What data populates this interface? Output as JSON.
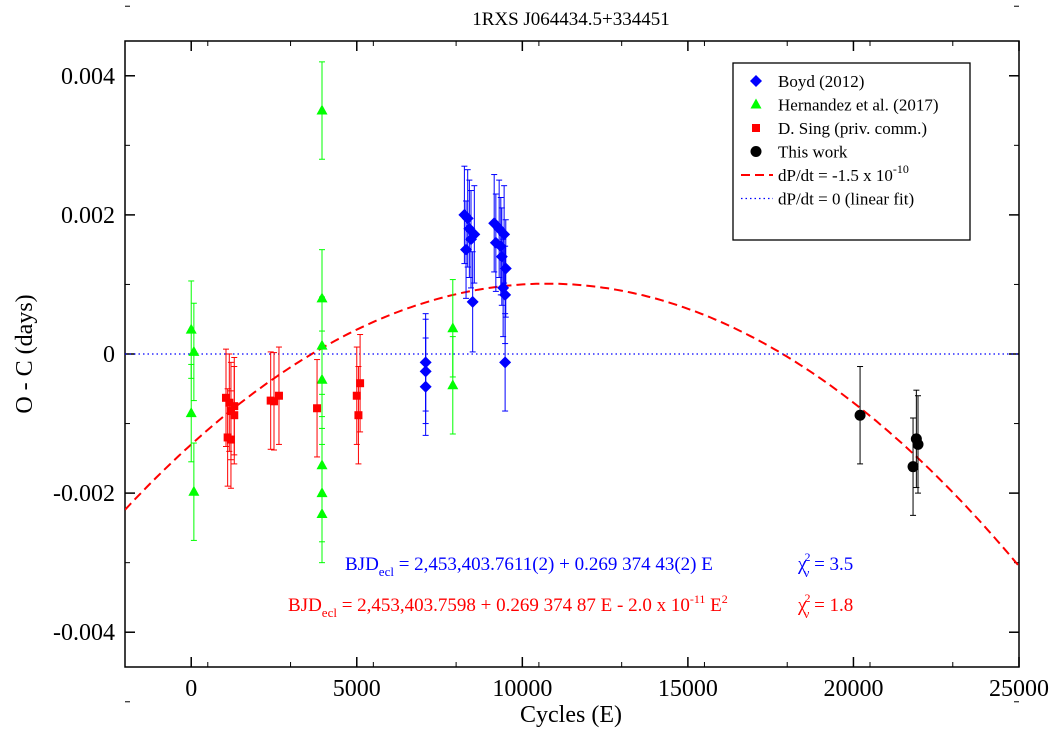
{
  "chart_data": {
    "type": "scatter",
    "title": "1RXS J064434.5+334451",
    "xlabel": "Cycles (E)",
    "ylabel": "O - C (days)",
    "xlim": [
      -2000,
      25000
    ],
    "ylim": [
      -0.0045,
      0.0045
    ],
    "x_ticks": [
      0,
      5000,
      10000,
      15000,
      20000,
      25000
    ],
    "x_tick_labels": [
      "0",
      "5000",
      "10000",
      "15000",
      "20000",
      "25000"
    ],
    "y_ticks": [
      0.004,
      0.002,
      0,
      -0.002,
      -0.004
    ],
    "y_tick_labels": [
      "0.004",
      "0.002",
      "0",
      "-0.002",
      "-0.004"
    ],
    "grid": false,
    "legend_position": "top-right",
    "series": [
      {
        "name": "Boyd (2012)",
        "marker": "diamond",
        "color": "#0000ff",
        "points": [
          {
            "x": 7080,
            "y": -0.00012,
            "err": 0.0007
          },
          {
            "x": 7080,
            "y": -0.00025,
            "err": 0.00075
          },
          {
            "x": 7080,
            "y": -0.00047,
            "err": 0.0007
          },
          {
            "x": 8250,
            "y": 0.002,
            "err": 0.0007
          },
          {
            "x": 8300,
            "y": 0.0015,
            "err": 0.0007
          },
          {
            "x": 8350,
            "y": 0.00195,
            "err": 0.0007
          },
          {
            "x": 8400,
            "y": 0.0018,
            "err": 0.0007
          },
          {
            "x": 8450,
            "y": 0.00165,
            "err": 0.0007
          },
          {
            "x": 8550,
            "y": 0.00172,
            "err": 0.0007
          },
          {
            "x": 8500,
            "y": 0.00075,
            "err": 0.00072
          },
          {
            "x": 9150,
            "y": 0.00188,
            "err": 0.0007
          },
          {
            "x": 9200,
            "y": 0.0016,
            "err": 0.0007
          },
          {
            "x": 9300,
            "y": 0.0018,
            "err": 0.0007
          },
          {
            "x": 9350,
            "y": 0.00155,
            "err": 0.0007
          },
          {
            "x": 9380,
            "y": 0.0014,
            "err": 0.0007
          },
          {
            "x": 9420,
            "y": 0.00095,
            "err": 0.0007
          },
          {
            "x": 9450,
            "y": 0.00172,
            "err": 0.0007
          },
          {
            "x": 9480,
            "y": 0.00085,
            "err": 0.0007
          },
          {
            "x": 9500,
            "y": 0.00123,
            "err": 0.0007
          },
          {
            "x": 9480,
            "y": -0.00012,
            "err": 0.0007
          }
        ]
      },
      {
        "name": "Hernandez et al. (2017)",
        "marker": "triangle",
        "color": "#00ff00",
        "points": [
          {
            "x": 0,
            "y": 0.00035,
            "err": 0.0007
          },
          {
            "x": 80,
            "y": 3e-05,
            "err": 0.0007
          },
          {
            "x": 0,
            "y": -0.00085,
            "err": 0.0007
          },
          {
            "x": 80,
            "y": -0.00198,
            "err": 0.0007
          },
          {
            "x": 3950,
            "y": 0.0035,
            "err": 0.0007
          },
          {
            "x": 3950,
            "y": 0.0008,
            "err": 0.0007
          },
          {
            "x": 3950,
            "y": 0.00012,
            "err": 0.0007
          },
          {
            "x": 3950,
            "y": -0.00037,
            "err": 0.0007
          },
          {
            "x": 3950,
            "y": -0.0016,
            "err": 0.0007
          },
          {
            "x": 3950,
            "y": -0.002,
            "err": 0.0007
          },
          {
            "x": 3950,
            "y": -0.0023,
            "err": 0.0007
          },
          {
            "x": 7900,
            "y": 0.00037,
            "err": 0.0007
          },
          {
            "x": 7900,
            "y": -0.00045,
            "err": 0.0007
          }
        ]
      },
      {
        "name": "D. Sing (priv. comm.)",
        "marker": "square",
        "color": "#ff0000",
        "points": [
          {
            "x": 1050,
            "y": -0.00063,
            "err": 0.0007
          },
          {
            "x": 1100,
            "y": -0.0012,
            "err": 0.0007
          },
          {
            "x": 1150,
            "y": -0.0007,
            "err": 0.0007
          },
          {
            "x": 1200,
            "y": -0.00082,
            "err": 0.0007
          },
          {
            "x": 1200,
            "y": -0.00123,
            "err": 0.0007
          },
          {
            "x": 1300,
            "y": -0.00075,
            "err": 0.0007
          },
          {
            "x": 1300,
            "y": -0.00088,
            "err": 0.0007
          },
          {
            "x": 2400,
            "y": -0.00067,
            "err": 0.0007
          },
          {
            "x": 2500,
            "y": -0.00068,
            "err": 0.0007
          },
          {
            "x": 2650,
            "y": -0.0006,
            "err": 0.0007
          },
          {
            "x": 3800,
            "y": -0.00078,
            "err": 0.0007
          },
          {
            "x": 5000,
            "y": -0.0006,
            "err": 0.0007
          },
          {
            "x": 5050,
            "y": -0.00088,
            "err": 0.0007
          },
          {
            "x": 5100,
            "y": -0.00042,
            "err": 0.0007
          }
        ]
      },
      {
        "name": "This work",
        "marker": "circle",
        "color": "#000000",
        "points": [
          {
            "x": 20200,
            "y": -0.00088,
            "err": 0.0007
          },
          {
            "x": 21800,
            "y": -0.00162,
            "err": 0.0007
          },
          {
            "x": 21900,
            "y": -0.00122,
            "err": 0.0007
          },
          {
            "x": 21950,
            "y": -0.0013,
            "err": 0.0007
          }
        ]
      }
    ],
    "curves": [
      {
        "name": "dP/dt = -1.5 x 10",
        "name_sup": "-10",
        "style": "dashed",
        "color": "#ff0000",
        "model": "quadratic",
        "y0": -0.0013,
        "c1": 4.3e-07,
        "c2": -2e-11
      },
      {
        "name": "dP/dt = 0 (linear fit)",
        "style": "dotted",
        "color": "#0000ff",
        "model": "constant",
        "y0": 0
      }
    ],
    "annotations": [
      {
        "color": "#0000ff",
        "main": "BJD",
        "sub": "ecl",
        "rest": " = 2,453,403.7611(2) + 0.269 374 43(2) E",
        "chi": "χ",
        "chi_sup": "2",
        "chi_sub": "ν",
        "chi_rest": " = 3.5"
      },
      {
        "color": "#ff0000",
        "main": "BJD",
        "sub": "ecl",
        "rest": " = 2,453,403.7598 + 0.269 374 87 E - 2.0 x 10",
        "sup": "-11",
        "tail": " E",
        "tail_sup": "2",
        "chi": "χ",
        "chi_sup": "2",
        "chi_sub": "ν",
        "chi_rest": " = 1.8"
      }
    ]
  }
}
